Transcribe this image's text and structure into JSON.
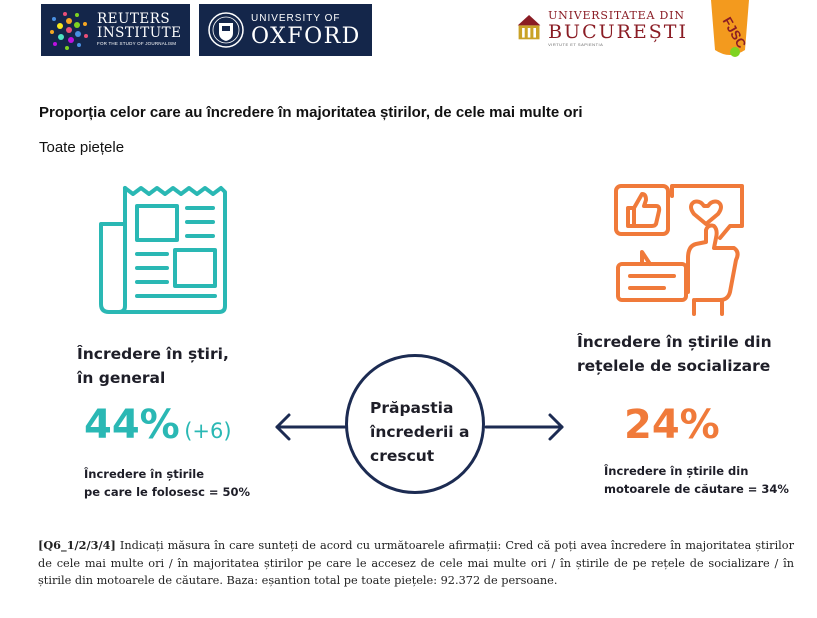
{
  "logos": {
    "reuters": {
      "line1": "REUTERS",
      "line2": "INSTITUTE",
      "tagline": "FOR THE STUDY OF JOURNALISM"
    },
    "oxford": {
      "line1": "UNIVERSITY OF",
      "line2": "OXFORD"
    },
    "ub": {
      "line1": "UNIVERSITATEA DIN",
      "line2": "BUCUREȘTI",
      "motto": "VIRTUTE ET SAPIENTIA"
    },
    "fjsc": {
      "text": "FJSC"
    }
  },
  "title": "Proporția celor care au încredere în majoritatea știrilor, de cele mai multe ori",
  "subtitle": "Toate piețele",
  "left": {
    "heading1": "Încredere în știri,",
    "heading2": "în general",
    "value": "44%",
    "delta": "(+6)",
    "note1": "Încredere în știrile",
    "note2": "pe care le folosesc = 50%"
  },
  "center": {
    "line1": "Prăpastia",
    "line2": "încrederii a",
    "line3": "crescut"
  },
  "right": {
    "heading1": "Încredere în știrile din",
    "heading2": "rețelele de socializare",
    "value": "24%",
    "note1": "Încredere în știrile din",
    "note2": "motoarele de căutare = 34%"
  },
  "footnote": {
    "code": "[Q6_1/2/3/4]",
    "text": " Indicați măsura în care sunteți de acord cu următoarele afirmații: Cred că poți avea încredere în majoritatea știrilor de cele mai multe ori / în majoritatea știrilor pe care le accesez de cele mai multe ori / în știrile de pe rețele de socializare / în știrile din motoarele de căutare. Baza: eșantion total pe toate piețele: 92.372 de persoane."
  },
  "colors": {
    "teal": "#2ab8b4",
    "orange": "#f07a3a",
    "navy": "#1c2b52"
  },
  "icons": [
    "newspaper-icon",
    "social-media-icon",
    "arrow-left-icon",
    "arrow-right-icon"
  ]
}
